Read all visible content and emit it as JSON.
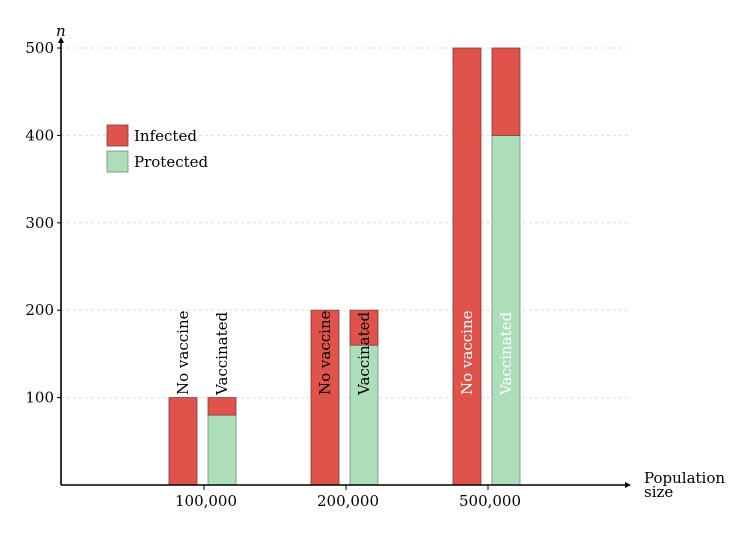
{
  "chart_data": {
    "type": "bar",
    "stacked": true,
    "ylabel": "n",
    "xlabel": "Population size",
    "ylim": [
      0,
      500
    ],
    "yticks": [
      100,
      200,
      300,
      400,
      500
    ],
    "grid": "horizontal dashed",
    "legend_position": "top-left",
    "colors": {
      "Infected": "#e0534a",
      "Protected": "#acdeb9"
    },
    "categories": [
      "100,000",
      "200,000",
      "500,000"
    ],
    "bar_labels": [
      "No vaccine",
      "Vaccinated"
    ],
    "groups": [
      {
        "category": "100,000",
        "label_color": "#000000",
        "bars": [
          {
            "label": "No vaccine",
            "Infected": 100,
            "Protected": 0
          },
          {
            "label": "Vaccinated",
            "Infected": 20,
            "Protected": 80
          }
        ]
      },
      {
        "category": "200,000",
        "label_color": "#000000",
        "bars": [
          {
            "label": "No vaccine",
            "Infected": 200,
            "Protected": 0
          },
          {
            "label": "Vaccinated",
            "Infected": 40,
            "Protected": 160
          }
        ]
      },
      {
        "category": "500,000",
        "label_color": "#ffffff",
        "bars": [
          {
            "label": "No vaccine",
            "Infected": 500,
            "Protected": 0
          },
          {
            "label": "Vaccinated",
            "Infected": 100,
            "Protected": 400
          }
        ]
      }
    ],
    "legend": [
      "Infected",
      "Protected"
    ]
  }
}
